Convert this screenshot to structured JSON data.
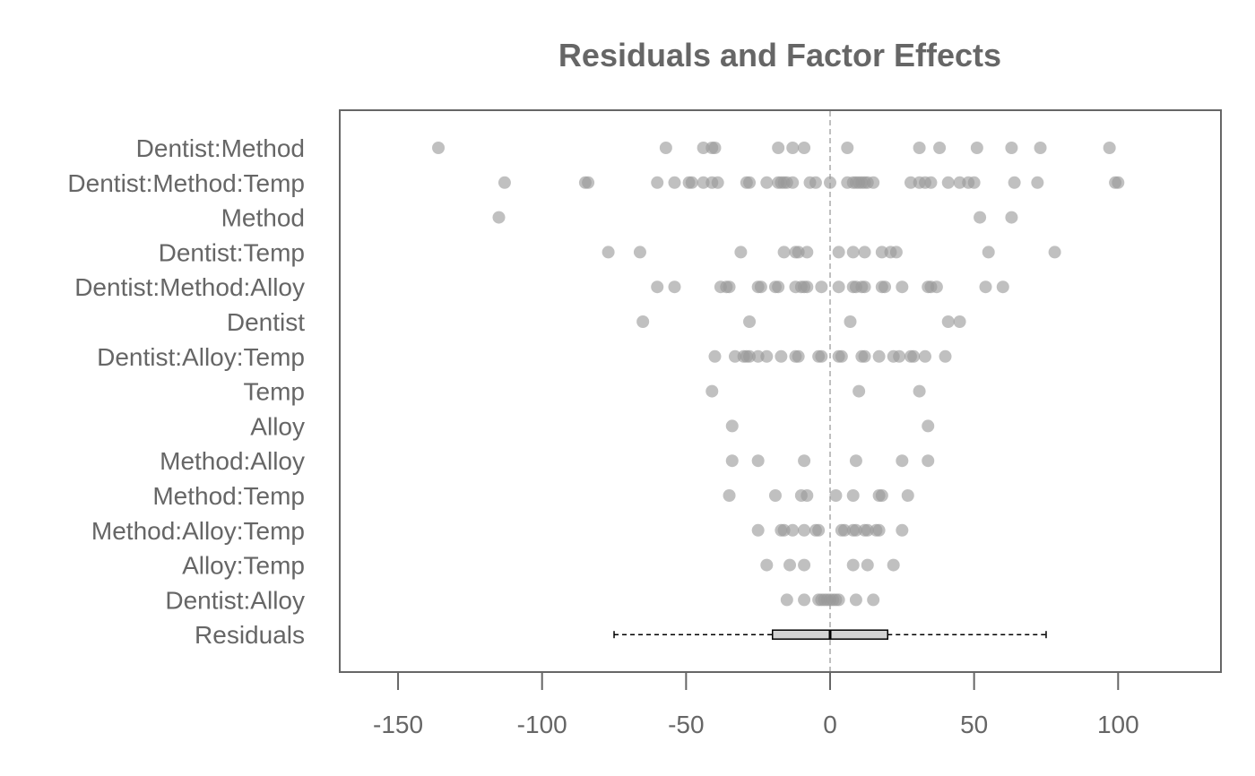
{
  "chart_data": {
    "type": "scatter",
    "title": "Residuals and Factor Effects",
    "xlabel": "",
    "ylabel": "",
    "xlim": [
      -170,
      135
    ],
    "x_ticks": [
      -150,
      -100,
      -50,
      0,
      50,
      100
    ],
    "x_tick_labels": [
      "-150",
      "-100",
      "-50",
      "0",
      "50",
      "100"
    ],
    "reference_line_x": 0,
    "point_color": "#999999",
    "rows": [
      {
        "label": "Dentist:Method",
        "values": [
          -136,
          -57,
          -44,
          -41,
          -40,
          -18,
          -13,
          -9,
          6,
          31,
          38,
          51,
          63,
          73,
          97
        ]
      },
      {
        "label": "Dentist:Method:Temp",
        "values": [
          -113,
          -85,
          -84,
          -60,
          -54,
          -49,
          -48,
          -44,
          -41,
          -39,
          -29,
          -28,
          -22,
          -18,
          -17,
          -16,
          -15,
          -13,
          -7,
          -5,
          0,
          6,
          8,
          9,
          10,
          11,
          12,
          13,
          15,
          28,
          31,
          33,
          35,
          41,
          45,
          48,
          50,
          64,
          72,
          99,
          100
        ]
      },
      {
        "label": "Method",
        "values": [
          -115,
          52,
          63
        ]
      },
      {
        "label": "Dentist:Temp",
        "values": [
          -77,
          -66,
          -31,
          -16,
          -12,
          -11,
          -8,
          3,
          8,
          12,
          18,
          21,
          23,
          55,
          78
        ]
      },
      {
        "label": "Dentist:Method:Alloy",
        "values": [
          -60,
          -54,
          -38,
          -36,
          -35,
          -25,
          -24,
          -19,
          -18,
          -12,
          -10,
          -9,
          -8,
          -3,
          3,
          8,
          9,
          11,
          12,
          18,
          19,
          25,
          34,
          35,
          37,
          54,
          60
        ]
      },
      {
        "label": "Dentist",
        "values": [
          -65,
          -28,
          7,
          41,
          45
        ]
      },
      {
        "label": "Dentist:Alloy:Temp",
        "values": [
          -40,
          -33,
          -30,
          -29,
          -28,
          -25,
          -22,
          -17,
          -12,
          -11,
          -4,
          -3,
          3,
          4,
          11,
          12,
          17,
          22,
          24,
          28,
          29,
          33,
          40
        ]
      },
      {
        "label": "Temp",
        "values": [
          -41,
          10,
          31
        ]
      },
      {
        "label": "Alloy",
        "values": [
          -34,
          34
        ]
      },
      {
        "label": "Method:Alloy",
        "values": [
          -34,
          -25,
          -9,
          9,
          25,
          34
        ]
      },
      {
        "label": "Method:Temp",
        "values": [
          -35,
          -19,
          -10,
          -8,
          2,
          8,
          17,
          18,
          27
        ]
      },
      {
        "label": "Method:Alloy:Temp",
        "values": [
          -25,
          -17,
          -16,
          -13,
          -9,
          -5,
          -4,
          4,
          5,
          8,
          9,
          12,
          13,
          16,
          17,
          25
        ]
      },
      {
        "label": "Alloy:Temp",
        "values": [
          -22,
          -14,
          -9,
          8,
          13,
          22
        ]
      },
      {
        "label": "Dentist:Alloy",
        "values": [
          -15,
          -9,
          -4,
          -3,
          -2,
          -1,
          0,
          1,
          2,
          3,
          9,
          15
        ]
      }
    ],
    "residuals_boxplot": {
      "label": "Residuals",
      "whisker_low": -75,
      "q1": -20,
      "median": 0,
      "q3": 20,
      "whisker_high": 75,
      "box_color": "#d3d3d3"
    }
  }
}
